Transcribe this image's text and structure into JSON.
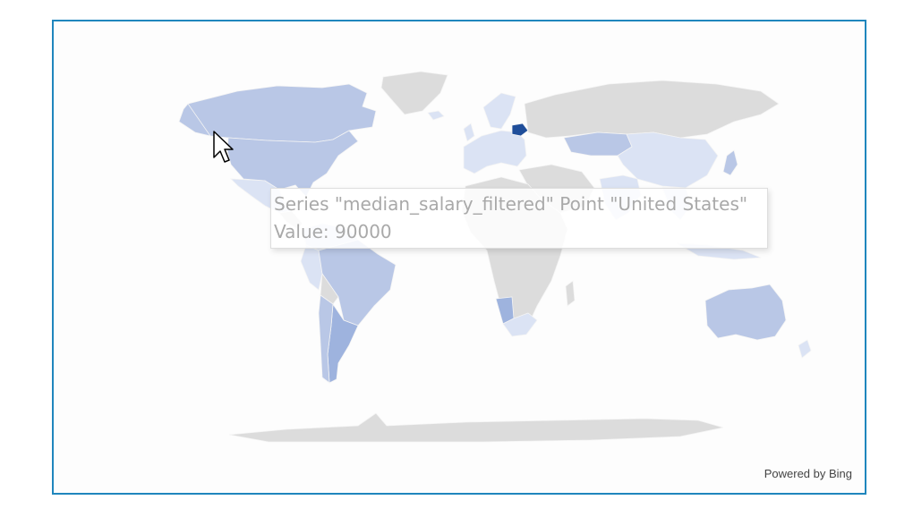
{
  "map": {
    "series_name": "median_salary_filtered",
    "colors": {
      "no_data": "#dcdcdc",
      "scale_light": "#dbe3f4",
      "scale_mid": "#b9c7e6",
      "scale_high": "#9eb3de",
      "scale_max": "#1f4e9a",
      "border": "#1f86bd"
    },
    "hovered_point": "United States",
    "countries": [
      {
        "name": "United States",
        "value": 90000,
        "shade": "scale_mid"
      },
      {
        "name": "Canada",
        "shade": "scale_mid"
      },
      {
        "name": "Greenland",
        "shade": "no_data"
      },
      {
        "name": "Mexico",
        "shade": "scale_light"
      },
      {
        "name": "Brazil",
        "shade": "scale_mid"
      },
      {
        "name": "Argentina",
        "shade": "scale_high"
      },
      {
        "name": "Chile",
        "shade": "scale_mid"
      },
      {
        "name": "Peru",
        "shade": "scale_light"
      },
      {
        "name": "Colombia",
        "shade": "scale_light"
      },
      {
        "name": "Venezuela",
        "shade": "scale_light"
      },
      {
        "name": "Russia",
        "shade": "no_data"
      },
      {
        "name": "Belarus",
        "shade": "scale_max"
      },
      {
        "name": "Kazakhstan",
        "shade": "scale_mid"
      },
      {
        "name": "China",
        "shade": "scale_light"
      },
      {
        "name": "India",
        "shade": "scale_light"
      },
      {
        "name": "Japan",
        "shade": "scale_mid"
      },
      {
        "name": "Australia",
        "shade": "scale_mid"
      },
      {
        "name": "New Zealand",
        "shade": "scale_light"
      },
      {
        "name": "South Africa",
        "shade": "scale_light"
      },
      {
        "name": "Namibia",
        "shade": "scale_high"
      },
      {
        "name": "Africa (other)",
        "shade": "no_data"
      },
      {
        "name": "Europe",
        "shade": "scale_light"
      },
      {
        "name": "Antarctica",
        "shade": "no_data"
      }
    ]
  },
  "tooltip": {
    "line1": "Series \"median_salary_filtered\" Point \"United States\"",
    "line2": "Value: 90000"
  },
  "attribution": "Powered by Bing"
}
